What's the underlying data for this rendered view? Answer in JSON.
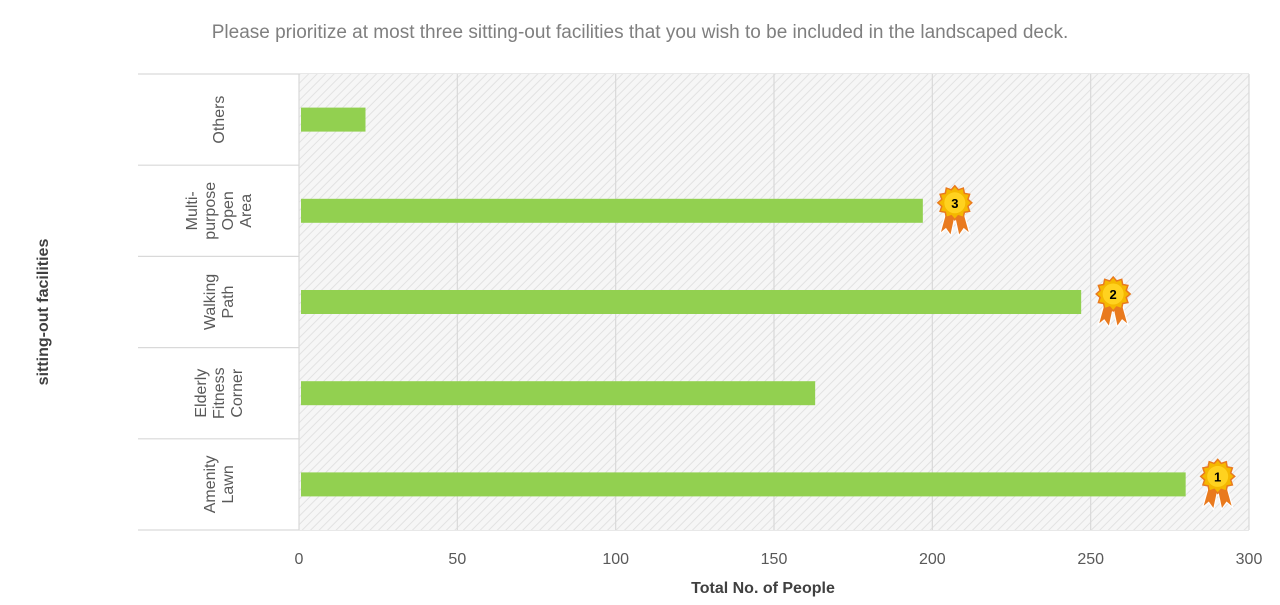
{
  "chart_data": {
    "type": "bar",
    "orientation": "horizontal",
    "title": "Please prioritize at most three sitting-out facilities that you wish to be included in the landscaped deck.",
    "xlabel": "Total No. of People",
    "ylabel": "sitting-out facilities",
    "xlim": [
      0,
      300
    ],
    "xticks": [
      "0",
      "50",
      "100",
      "150",
      "200",
      "250",
      "300"
    ],
    "categories": [
      [
        "Amenity",
        "Lawn"
      ],
      [
        "Elderly",
        "Fitness",
        "Corner"
      ],
      [
        "Walking",
        "Path"
      ],
      [
        "Multi-",
        "purpose",
        "Open",
        "Area"
      ],
      [
        "Others"
      ]
    ],
    "values": [
      280,
      163,
      247,
      197,
      21
    ],
    "ranks": [
      "1",
      "",
      "2",
      "3",
      ""
    ],
    "bar_color": "#92d050",
    "medal_color": "#f5b800",
    "ribbon_color": "#e97a1e",
    "grid": true,
    "background": "hatched-grey"
  }
}
